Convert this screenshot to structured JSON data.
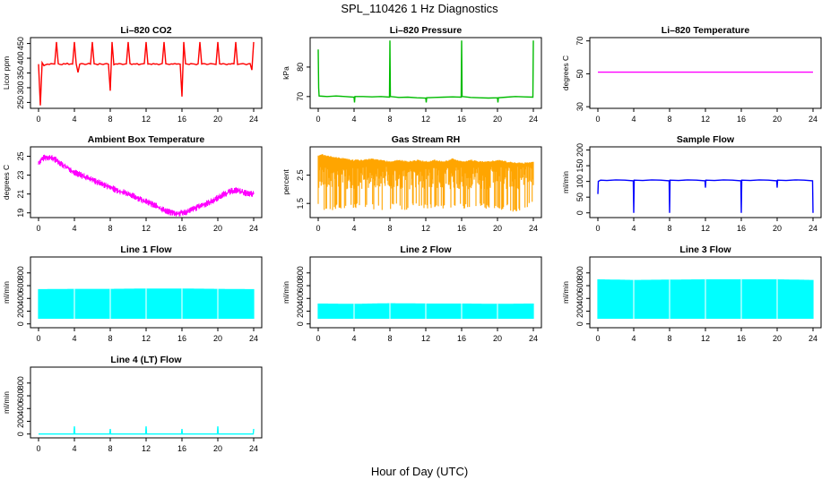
{
  "title": "SPL_110426  1 Hz Diagnostics",
  "xlabel": "Hour of Day (UTC)",
  "chart_data": [
    {
      "type": "line",
      "title": "Li–820 CO2",
      "ylabel": "Licor ppm",
      "color": "#ff0000",
      "xlim": [
        0,
        24
      ],
      "ylim": [
        230,
        470
      ],
      "yticks": [
        250,
        300,
        350,
        400,
        450
      ],
      "ytick_labels": [
        "250",
        "300",
        "350",
        "400",
        "450"
      ],
      "xticks": [
        0,
        4,
        8,
        12,
        16,
        20,
        24
      ],
      "series": [
        {
          "x": [
            0,
            0.2,
            0.4,
            0.6,
            0.8,
            1,
            1.2,
            1.4,
            1.6,
            1.8,
            2,
            2.2,
            2.4,
            2.6,
            2.8,
            3,
            3.2,
            3.4,
            3.6,
            3.8,
            4,
            4.2,
            4.4,
            4.6,
            4.8,
            5,
            5.2,
            5.4,
            5.6,
            5.8,
            6,
            6.2,
            6.4,
            6.6,
            6.8,
            7,
            7.2,
            7.4,
            7.6,
            7.8,
            8,
            8.2,
            8.4,
            8.6,
            8.8,
            9,
            9.2,
            9.4,
            9.6,
            9.8,
            10,
            10.2,
            10.4,
            10.6,
            10.8,
            11,
            11.2,
            11.4,
            11.6,
            11.8,
            12,
            12.2,
            12.4,
            12.6,
            12.8,
            13,
            13.2,
            13.4,
            13.6,
            13.8,
            14,
            14.2,
            14.4,
            14.6,
            14.8,
            15,
            15.2,
            15.4,
            15.6,
            15.8,
            16,
            16.2,
            16.4,
            16.6,
            16.8,
            17,
            17.2,
            17.4,
            17.6,
            17.8,
            18,
            18.2,
            18.4,
            18.6,
            18.8,
            19,
            19.2,
            19.4,
            19.6,
            19.8,
            20,
            20.2,
            20.4,
            20.6,
            20.8,
            21,
            21.2,
            21.4,
            21.6,
            21.8,
            22,
            22.2,
            22.4,
            22.6,
            22.8,
            23,
            23.2,
            23.4,
            23.6,
            23.8,
            24
          ],
          "y": [
            380,
            240,
            385,
            375,
            378,
            380,
            379,
            382,
            381,
            380,
            455,
            381,
            379,
            378,
            382,
            380,
            383,
            379,
            381,
            380,
            455,
            381,
            352,
            380,
            382,
            381,
            379,
            380,
            383,
            380,
            455,
            381,
            380,
            378,
            382,
            380,
            379,
            381,
            382,
            380,
            290,
            455,
            378,
            381,
            380,
            382,
            381,
            379,
            380,
            381,
            455,
            382,
            379,
            381,
            380,
            382,
            378,
            380,
            381,
            382,
            455,
            380,
            381,
            379,
            382,
            380,
            381,
            378,
            380,
            382,
            455,
            381,
            380,
            379,
            381,
            380,
            382,
            380,
            381,
            380,
            270,
            455,
            381,
            380,
            379,
            382,
            381,
            380,
            378,
            381,
            455,
            380,
            382,
            381,
            379,
            380,
            382,
            381,
            380,
            379,
            455,
            381,
            380,
            382,
            380,
            378,
            381,
            380,
            382,
            381,
            455,
            379,
            380,
            381,
            382,
            380,
            378,
            381,
            382,
            360,
            455
          ]
        }
      ]
    },
    {
      "type": "line",
      "title": "Li–820 Pressure",
      "ylabel": "kPa",
      "color": "#00bb00",
      "xlim": [
        0,
        24
      ],
      "ylim": [
        66,
        90
      ],
      "yticks": [
        70,
        80
      ],
      "ytick_labels": [
        "70",
        "80"
      ],
      "xticks": [
        0,
        4,
        8,
        12,
        16,
        20,
        24
      ],
      "series": [
        {
          "x": [
            0,
            0.05,
            0.1,
            0.5,
            1,
            2,
            3,
            4,
            4.05,
            4.1,
            5,
            6,
            7,
            7.95,
            8,
            8.05,
            9,
            10,
            11,
            12,
            12.05,
            12.1,
            13,
            14,
            15,
            15.95,
            16,
            16.05,
            17,
            18,
            19,
            20,
            20.05,
            20.1,
            21,
            22,
            23,
            23.95,
            24
          ],
          "y": [
            86,
            73,
            70.2,
            70.1,
            70,
            70.2,
            70,
            69.8,
            68,
            70,
            70,
            69.9,
            70,
            69.8,
            89,
            70,
            69.7,
            69.8,
            69.6,
            69.5,
            68,
            69.6,
            69.7,
            69.8,
            69.9,
            69.8,
            89,
            70,
            69.7,
            69.6,
            69.5,
            69.6,
            68,
            69.6,
            69.8,
            70,
            69.9,
            69.8,
            89
          ]
        }
      ]
    },
    {
      "type": "line",
      "title": "Li–820 Temperature",
      "ylabel": "degrees C",
      "color": "#ff00ff",
      "xlim": [
        0,
        24
      ],
      "ylim": [
        29,
        72
      ],
      "yticks": [
        30,
        50,
        70
      ],
      "ytick_labels": [
        "30",
        "50",
        "70"
      ],
      "xticks": [
        0,
        4,
        8,
        12,
        16,
        20,
        24
      ],
      "series": [
        {
          "x": [
            0,
            24
          ],
          "y": [
            51,
            51
          ]
        }
      ]
    },
    {
      "type": "line",
      "title": "Ambient Box Temperature",
      "ylabel": "degrees C",
      "color": "#ff00ff",
      "xlim": [
        0,
        24
      ],
      "ylim": [
        18.5,
        26
      ],
      "yticks": [
        19,
        21,
        23,
        25
      ],
      "ytick_labels": [
        "19",
        "21",
        "23",
        "25"
      ],
      "xticks": [
        0,
        4,
        8,
        12,
        16,
        20,
        24
      ],
      "series": [
        {
          "x": [
            0,
            0.5,
            1,
            1.5,
            2,
            2.5,
            3,
            3.5,
            4,
            4.5,
            5,
            5.5,
            6,
            6.5,
            7,
            7.5,
            8,
            8.5,
            9,
            9.5,
            10,
            10.5,
            11,
            11.5,
            12,
            12.5,
            13,
            13.5,
            14,
            14.5,
            15,
            15.5,
            16,
            16.5,
            17,
            17.5,
            18,
            18.5,
            19,
            19.5,
            20,
            20.5,
            21,
            21.5,
            22,
            22.5,
            23,
            23.5,
            24
          ],
          "y": [
            24.3,
            24.8,
            24.9,
            24.8,
            24.6,
            24.2,
            23.9,
            23.6,
            23.3,
            23.1,
            22.9,
            22.7,
            22.5,
            22.3,
            22.1,
            21.9,
            21.7,
            21.5,
            21.3,
            21.2,
            21.0,
            20.8,
            20.6,
            20.4,
            20.2,
            20.0,
            19.8,
            19.5,
            19.3,
            19.1,
            19.0,
            18.9,
            19.0,
            19.1,
            19.3,
            19.5,
            19.7,
            19.9,
            20.1,
            20.3,
            20.6,
            20.9,
            21.1,
            21.3,
            21.4,
            21.3,
            21.1,
            21.0,
            21.0
          ]
        }
      ],
      "band": 0.35
    },
    {
      "type": "line",
      "title": "Gas Stream RH",
      "ylabel": "percent",
      "color": "#ffa500",
      "xlim": [
        0,
        24
      ],
      "ylim": [
        1.0,
        3.5
      ],
      "yticks": [
        1.5,
        2.5
      ],
      "ytick_labels": [
        "1.5",
        "2.5"
      ],
      "xticks": [
        0,
        4,
        8,
        12,
        16,
        20,
        24
      ],
      "series": [
        {
          "name": "upper",
          "x": [
            0,
            0.5,
            1,
            2,
            3,
            4,
            5,
            6,
            7,
            8,
            9,
            10,
            11,
            12,
            13,
            14,
            15,
            16,
            17,
            18,
            19,
            20,
            21,
            22,
            23,
            24
          ],
          "y": [
            3.2,
            3.25,
            3.2,
            3.15,
            3.1,
            3.05,
            3.05,
            3.1,
            3.05,
            3.0,
            3.05,
            3.0,
            3.05,
            3.0,
            3.05,
            3.0,
            3.1,
            3.0,
            3.05,
            3.0,
            3.0,
            3.05,
            3.0,
            2.95,
            2.95,
            3.0
          ]
        },
        {
          "name": "lower",
          "x": [
            0,
            0.5,
            1,
            2,
            3,
            4,
            5,
            6,
            7,
            8,
            9,
            10,
            11,
            12,
            13,
            14,
            15,
            16,
            17,
            18,
            19,
            20,
            21,
            22,
            23,
            24
          ],
          "y": [
            1.6,
            1.5,
            1.4,
            1.5,
            1.45,
            1.5,
            1.55,
            1.5,
            1.45,
            1.5,
            1.5,
            1.45,
            1.55,
            1.5,
            1.5,
            1.45,
            1.5,
            1.5,
            1.45,
            1.5,
            1.5,
            1.45,
            1.5,
            1.35,
            1.5,
            1.6
          ]
        }
      ]
    },
    {
      "type": "line",
      "title": "Sample Flow",
      "ylabel": "ml/min",
      "color": "#0000ff",
      "xlim": [
        0,
        24
      ],
      "ylim": [
        -15,
        210
      ],
      "yticks": [
        0,
        50,
        100,
        150,
        200
      ],
      "ytick_labels": [
        "0",
        "50",
        "100",
        "150",
        "200"
      ],
      "xticks": [
        0,
        4,
        8,
        12,
        16,
        20,
        24
      ],
      "series": [
        {
          "x": [
            0,
            0.05,
            0.3,
            1,
            2,
            3,
            3.95,
            4,
            4.05,
            5,
            6,
            7,
            7.95,
            8,
            8.05,
            9,
            10,
            11,
            11.95,
            12,
            12.05,
            13,
            14,
            15,
            15.95,
            16,
            16.05,
            17,
            18,
            19,
            19.95,
            20,
            20.05,
            21,
            22,
            23,
            23.95,
            24
          ],
          "y": [
            60,
            100,
            104,
            103,
            105,
            104,
            102,
            0,
            104,
            103,
            105,
            104,
            102,
            0,
            104,
            103,
            105,
            104,
            102,
            80,
            104,
            103,
            105,
            104,
            102,
            0,
            104,
            103,
            105,
            104,
            102,
            80,
            104,
            103,
            105,
            104,
            102,
            0
          ]
        }
      ]
    },
    {
      "type": "line",
      "title": "Line 1 Flow",
      "ylabel": "ml/min",
      "color": "#00ffff",
      "xlim": [
        0,
        24
      ],
      "ylim": [
        -60,
        1050
      ],
      "yticks": [
        0,
        200,
        400,
        600,
        800
      ],
      "ytick_labels": [
        "0",
        "200",
        "400",
        "600",
        "800"
      ],
      "xticks": [
        0,
        4,
        8,
        12,
        16,
        20,
        24
      ],
      "series": [
        {
          "name": "max",
          "x": [
            0,
            4,
            8,
            12,
            16,
            20,
            24
          ],
          "y": [
            545,
            550,
            550,
            555,
            555,
            550,
            545
          ]
        },
        {
          "name": "min",
          "x": [
            0,
            24
          ],
          "y": [
            80,
            80
          ]
        }
      ]
    },
    {
      "type": "line",
      "title": "Line 2 Flow",
      "ylabel": "ml/min",
      "color": "#00ffff",
      "xlim": [
        0,
        24
      ],
      "ylim": [
        -60,
        1050
      ],
      "yticks": [
        0,
        200,
        400,
        600,
        800
      ],
      "ytick_labels": [
        "0",
        "200",
        "400",
        "600",
        "800"
      ],
      "xticks": [
        0,
        4,
        8,
        12,
        16,
        20,
        24
      ],
      "series": [
        {
          "name": "max",
          "x": [
            0,
            4,
            8,
            12,
            16,
            20,
            24
          ],
          "y": [
            320,
            315,
            325,
            320,
            320,
            315,
            320
          ]
        },
        {
          "name": "min",
          "x": [
            0,
            24
          ],
          "y": [
            80,
            80
          ]
        }
      ]
    },
    {
      "type": "line",
      "title": "Line 3 Flow",
      "ylabel": "ml/min",
      "color": "#00ffff",
      "xlim": [
        0,
        24
      ],
      "ylim": [
        -60,
        1050
      ],
      "yticks": [
        0,
        200,
        400,
        600,
        800
      ],
      "ytick_labels": [
        "0",
        "200",
        "400",
        "600",
        "800"
      ],
      "xticks": [
        0,
        4,
        8,
        12,
        16,
        20,
        24
      ],
      "series": [
        {
          "name": "max",
          "x": [
            0,
            4,
            8,
            12,
            16,
            20,
            24
          ],
          "y": [
            700,
            690,
            695,
            700,
            700,
            700,
            690
          ]
        },
        {
          "name": "min",
          "x": [
            0,
            24
          ],
          "y": [
            80,
            80
          ]
        }
      ]
    },
    {
      "type": "line",
      "title": "Line 4 (LT) Flow",
      "ylabel": "ml/min",
      "color": "#00ffff",
      "xlim": [
        0,
        24
      ],
      "ylim": [
        -60,
        1050
      ],
      "yticks": [
        0,
        200,
        400,
        600,
        800
      ],
      "ytick_labels": [
        "0",
        "200",
        "400",
        "600",
        "800"
      ],
      "xticks": [
        0,
        4,
        8,
        12,
        16,
        20,
        24
      ],
      "series": [
        {
          "x": [
            0,
            3.95,
            4,
            4.05,
            7.95,
            8,
            8.05,
            11.95,
            12,
            12.05,
            15.95,
            16,
            16.05,
            19.95,
            20,
            20.05,
            23.95,
            24
          ],
          "y": [
            0,
            0,
            120,
            0,
            0,
            80,
            0,
            0,
            120,
            0,
            0,
            80,
            0,
            0,
            120,
            0,
            0,
            80
          ]
        }
      ]
    }
  ]
}
